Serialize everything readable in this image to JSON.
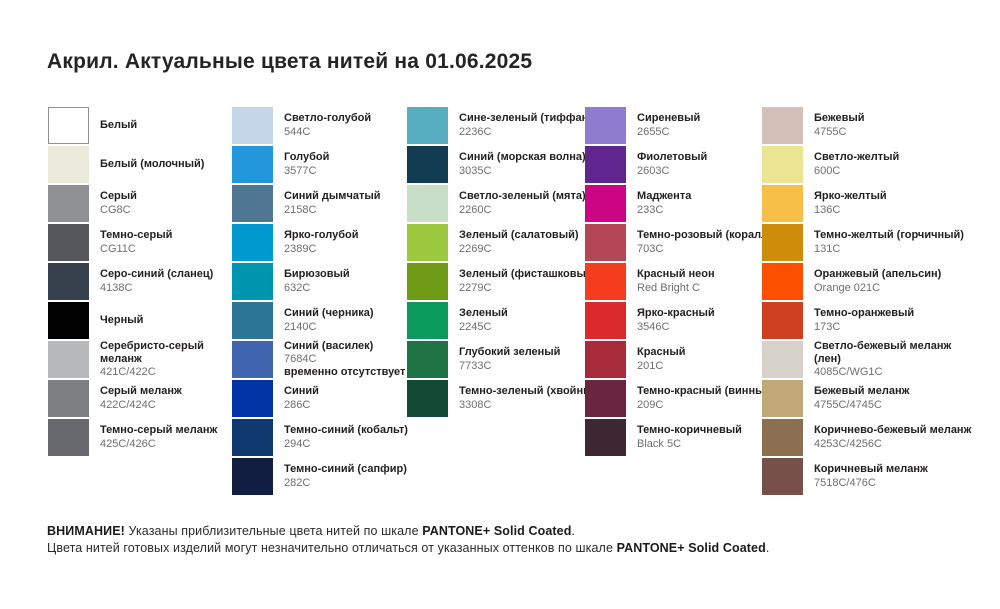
{
  "title": "Акрил. Актуальные цвета нитей на 01.06.2025",
  "columns": [
    {
      "name": "whites-grays",
      "items": [
        {
          "name": "Белый",
          "code": "",
          "color": "#FFFFFF",
          "border": true
        },
        {
          "name": "Белый (молочный)",
          "code": "",
          "color": "#EBEADB",
          "border": false
        },
        {
          "name": "Серый",
          "code": "CG8C",
          "color": "#8E9093",
          "border": false
        },
        {
          "name": "Темно-серый",
          "code": "CG11C",
          "color": "#55575C",
          "border": false
        },
        {
          "name": "Серо-синий (сланец)",
          "code": "4138C",
          "color": "#37424E",
          "border": false
        },
        {
          "name": "Черный",
          "code": "",
          "color": "#010101",
          "border": false
        },
        {
          "name": "Серебристо-серый\nмеланж",
          "code": "421C/422C",
          "color": "#B7B8BA",
          "border": false
        },
        {
          "name": "Серый меланж",
          "code": "422C/424C",
          "color": "#7D7F82",
          "border": false
        },
        {
          "name": "Темно-серый меланж",
          "code": "425C/426C",
          "color": "#65686C",
          "border": false
        }
      ]
    },
    {
      "name": "blues",
      "items": [
        {
          "name": "Светло-голубой",
          "code": "544C",
          "color": "#C5D6E8",
          "border": false
        },
        {
          "name": "Голубой",
          "code": "3577C",
          "color": "#2297DC",
          "border": false
        },
        {
          "name": "Синий дымчатый",
          "code": "2158C",
          "color": "#4F7793",
          "border": false
        },
        {
          "name": "Ярко-голубой",
          "code": "2389C",
          "color": "#0099CF",
          "border": false
        },
        {
          "name": "Бирюзовый",
          "code": "632C",
          "color": "#0096AF",
          "border": false
        },
        {
          "name": "Синий (черника)",
          "code": "2140C",
          "color": "#2D7596",
          "border": false
        },
        {
          "name": "Синий (василек)",
          "code": "7684C",
          "color": "#4164AE",
          "border": false,
          "note": "временно отсутствует"
        },
        {
          "name": "Синий",
          "code": "286C",
          "color": "#0133A7",
          "border": false
        },
        {
          "name": "Темно-синий (кобальт)",
          "code": "294C",
          "color": "#0E3A70",
          "border": false
        },
        {
          "name": "Темно-синий (сапфир)",
          "code": "282C",
          "color": "#111E41",
          "border": false
        }
      ]
    },
    {
      "name": "greens",
      "items": [
        {
          "name": "Сине-зеленый (тиффани)",
          "code": "2236C",
          "color": "#58AEC1",
          "border": false
        },
        {
          "name": "Синий (морская волна)",
          "code": "3035C",
          "color": "#123C52",
          "border": false
        },
        {
          "name": "Светло-зеленый (мята)",
          "code": "2260C",
          "color": "#C8DEC6",
          "border": false
        },
        {
          "name": "Зеленый (салатовый)",
          "code": "2269C",
          "color": "#9CC83F",
          "border": false
        },
        {
          "name": "Зеленый (фисташковый)",
          "code": "2279C",
          "color": "#6F9A16",
          "border": false
        },
        {
          "name": "Зеленый",
          "code": "2245C",
          "color": "#099A5C",
          "border": false
        },
        {
          "name": "Глубокий зеленый",
          "code": "7733C",
          "color": "#1F7345",
          "border": false
        },
        {
          "name": "Темно-зеленый (хвойный)",
          "code": "3308C",
          "color": "#124A34",
          "border": false
        }
      ]
    },
    {
      "name": "purples-reds",
      "items": [
        {
          "name": "Сиреневый",
          "code": "2655C",
          "color": "#8F7BD0",
          "border": false
        },
        {
          "name": "Фиолетовый",
          "code": "2603C",
          "color": "#61258F",
          "border": false
        },
        {
          "name": "Маджента",
          "code": "233C",
          "color": "#CB0584",
          "border": false
        },
        {
          "name": "Темно-розовый (коралл)",
          "code": "703C",
          "color": "#B44655",
          "border": false
        },
        {
          "name": "Красный неон",
          "code": "Red Bright C",
          "color": "#F43D1E",
          "border": false
        },
        {
          "name": "Ярко-красный",
          "code": "3546C",
          "color": "#DA2A2C",
          "border": false
        },
        {
          "name": "Красный",
          "code": "201C",
          "color": "#A82B3B",
          "border": false
        },
        {
          "name": "Темно-красный (винный)",
          "code": "209C",
          "color": "#69263E",
          "border": false
        },
        {
          "name": "Темно-коричневый",
          "code": "Black 5C",
          "color": "#3C2733",
          "border": false
        }
      ]
    },
    {
      "name": "yellows-browns",
      "items": [
        {
          "name": "Бежевый",
          "code": "4755C",
          "color": "#D3C0B8",
          "border": false
        },
        {
          "name": "Светло-желтый",
          "code": "600C",
          "color": "#EBE593",
          "border": false
        },
        {
          "name": "Ярко-желтый",
          "code": "136C",
          "color": "#F7BE48",
          "border": false
        },
        {
          "name": "Темно-желтый (горчичный)",
          "code": "131C",
          "color": "#CE8C0A",
          "border": false
        },
        {
          "name": "Оранжевый (апельсин)",
          "code": "Orange 021C",
          "color": "#FD4F00",
          "border": false
        },
        {
          "name": "Темно-оранжевый",
          "code": "173C",
          "color": "#CF3F22",
          "border": false
        },
        {
          "name": "Светло-бежевый меланж (лен)",
          "code": "4085C/WG1C",
          "color": "#D6D2CA",
          "border": false
        },
        {
          "name": "Бежевый меланж",
          "code": "4755C/4745C",
          "color": "#C0A878",
          "border": false
        },
        {
          "name": "Коричнево-бежевый меланж",
          "code": "4253C/4256C",
          "color": "#8B6F50",
          "border": false
        },
        {
          "name": "Коричневый меланж",
          "code": "7518C/476C",
          "color": "#775149",
          "border": false
        }
      ]
    }
  ],
  "footer": {
    "line1": {
      "bold_intro": "ВНИМАНИЕ!",
      "text": " Указаны приблизительные цвета нитей по шкале ",
      "bold_scale": "PANTONE+ Solid Coated",
      "period": "."
    },
    "line2": {
      "text": "Цвета нитей готовых изделий могут незначительно отличаться от указанных оттенков по шкале ",
      "bold_scale": "PANTONE+ Solid Coated",
      "period": "."
    }
  }
}
